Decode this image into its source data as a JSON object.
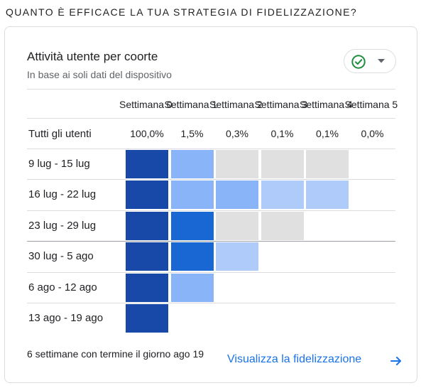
{
  "section": {
    "title": "QUANTO È EFFICACE LA TUA STRATEGIA DI FIDELIZZAZIONE?"
  },
  "card": {
    "title": "Attività utente per coorte",
    "subtitle": "In base ai soli dati del dispositivo",
    "status_icon": "check-circle-icon",
    "dropdown_icon": "caret-down-icon",
    "colors": {
      "check": "#1e8e3e",
      "link": "#1a73e8"
    }
  },
  "table": {
    "columns": [
      "Settimana 0",
      "Settimana 1",
      "Settimana 2",
      "Settimana 3",
      "Settimana 4",
      "Settimana 5"
    ],
    "total": {
      "label": "Tutti gli utenti",
      "values": [
        "100,0%",
        "1,5%",
        "0,3%",
        "0,1%",
        "0,1%",
        "0,0%"
      ]
    },
    "rows": [
      {
        "label": "9 lug - 15 lug",
        "cells": [
          "#1849a9",
          "#8ab4f8",
          "#e0e0e0",
          "#e0e0e0",
          "#e0e0e0"
        ]
      },
      {
        "label": "16 lug - 22 lug",
        "cells": [
          "#1849a9",
          "#8ab4f8",
          "#8ab4f8",
          "#aecbfa",
          "#aecbfa"
        ]
      },
      {
        "label": "23 lug - 29 lug",
        "cells": [
          "#1849a9",
          "#1967d2",
          "#e0e0e0",
          "#e0e0e0"
        ]
      },
      {
        "label": "30 lug - 5 ago",
        "cells": [
          "#1849a9",
          "#1967d2",
          "#aecbfa"
        ]
      },
      {
        "label": "6 ago - 12 ago",
        "cells": [
          "#1849a9",
          "#8ab4f8"
        ]
      },
      {
        "label": "13 ago - 19 ago",
        "cells": [
          "#1849a9"
        ]
      }
    ]
  },
  "footer": {
    "description": "6 settimane con termine il giorno ago 19",
    "link_label": "Visualizza la fidelizzazione",
    "link_icon": "arrow-right-icon"
  }
}
